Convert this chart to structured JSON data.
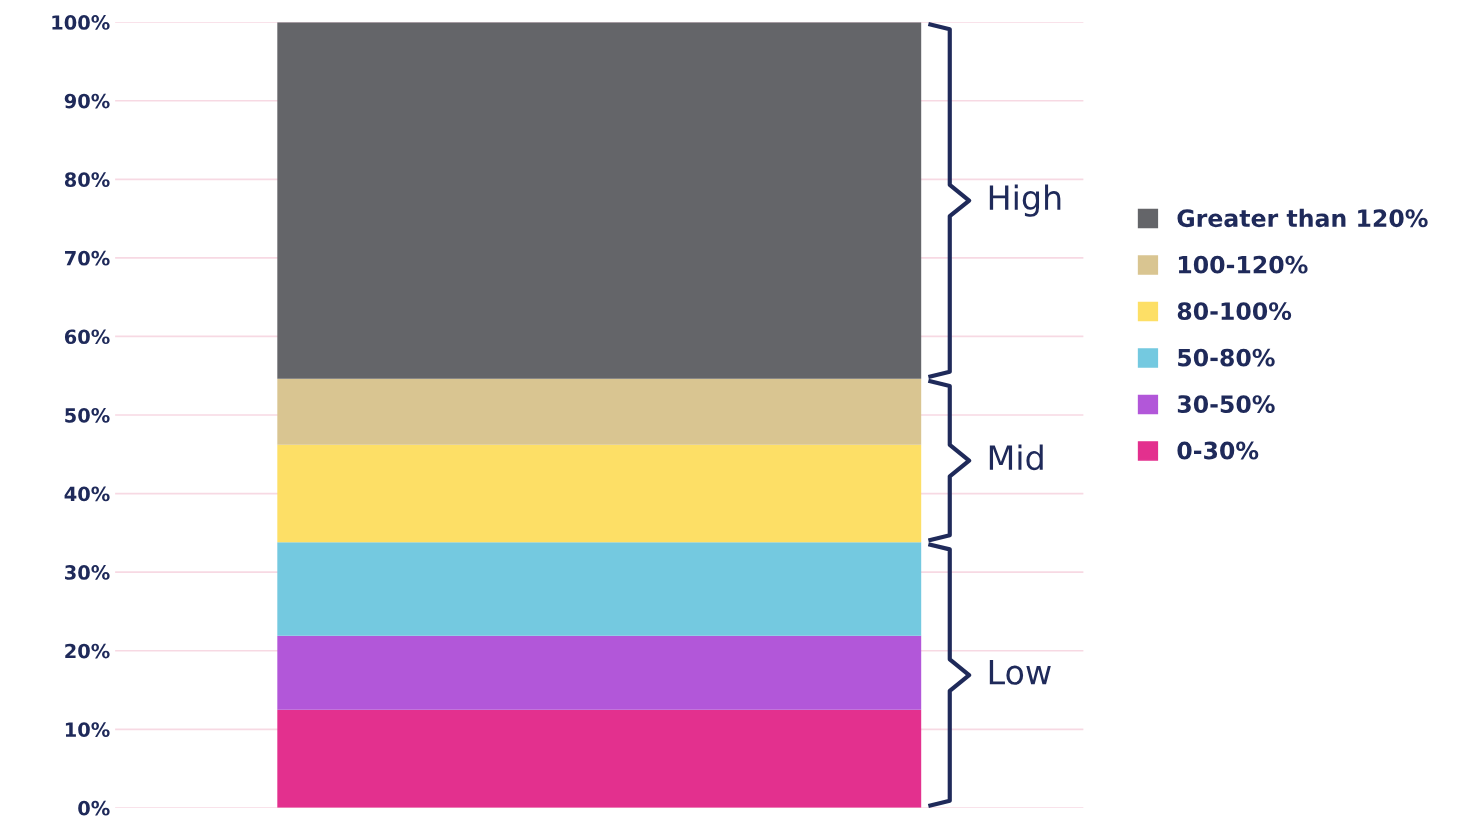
{
  "chart_data": {
    "type": "bar",
    "stacked": true,
    "categories": [
      null
    ],
    "series": [
      {
        "name": "0-30%",
        "color": "#e3308e",
        "values": [
          12.5
        ]
      },
      {
        "name": "30-50%",
        "color": "#b257d9",
        "values": [
          9.4
        ]
      },
      {
        "name": "50-80%",
        "color": "#74c9e0",
        "values": [
          11.9
        ]
      },
      {
        "name": "80-100%",
        "color": "#fddf66",
        "values": [
          12.4
        ]
      },
      {
        "name": "100-120%",
        "color": "#d9c591",
        "values": [
          8.4
        ]
      },
      {
        "name": "Greater than 120%",
        "color": "#646569",
        "values": [
          45.4
        ]
      }
    ],
    "ylim": [
      0,
      100
    ],
    "yticks": [
      {
        "value": 0,
        "label": "0%"
      },
      {
        "value": 10,
        "label": "10%"
      },
      {
        "value": 20,
        "label": "20%"
      },
      {
        "value": 30,
        "label": "30%"
      },
      {
        "value": 40,
        "label": "40%"
      },
      {
        "value": 50,
        "label": "50%"
      },
      {
        "value": 60,
        "label": "60%"
      },
      {
        "value": 70,
        "label": "70%"
      },
      {
        "value": 80,
        "label": "80%"
      },
      {
        "value": 90,
        "label": "90%"
      },
      {
        "value": 100,
        "label": "100%"
      }
    ],
    "grid": "y",
    "legend": "right",
    "annotations": [
      "High",
      "Mid",
      "Low"
    ]
  }
}
